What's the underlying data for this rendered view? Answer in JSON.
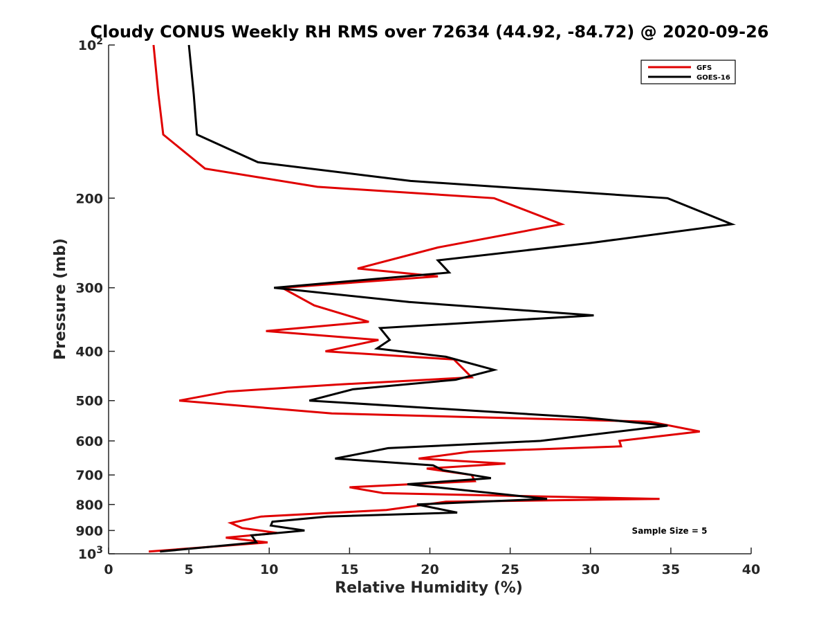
{
  "chart_data": {
    "type": "line",
    "title": "Cloudy CONUS Weekly RH RMS over 72634 (44.92, -84.72) @ 2020-09-26",
    "xlabel": "Relative Humidity (%)",
    "ylabel": "Pressure (mb)",
    "xlim": [
      0,
      40
    ],
    "ylim": [
      100,
      1000
    ],
    "y_scale": "log",
    "y_reversed": true,
    "grid": false,
    "legend_position": "top-right",
    "x_ticks": [
      "0",
      "5",
      "10",
      "15",
      "20",
      "25",
      "30",
      "35",
      "40"
    ],
    "x_tick_values": [
      0,
      5,
      10,
      15,
      20,
      25,
      30,
      35,
      40
    ],
    "y_ticks": [
      {
        "value": 100,
        "base": "10",
        "exp": "2"
      },
      {
        "value": 200,
        "label": "200"
      },
      {
        "value": 300,
        "label": "300"
      },
      {
        "value": 400,
        "label": "400"
      },
      {
        "value": 500,
        "label": "500"
      },
      {
        "value": 600,
        "label": "600"
      },
      {
        "value": 700,
        "label": "700"
      },
      {
        "value": 800,
        "label": "800"
      },
      {
        "value": 900,
        "label": "900"
      },
      {
        "value": 1000,
        "base": "10",
        "exp": "3"
      }
    ],
    "series": [
      {
        "name": "GFS",
        "color": "#e00000",
        "points": [
          [
            2.8,
            100
          ],
          [
            3.1,
            125
          ],
          [
            3.4,
            150
          ],
          [
            6.0,
            175
          ],
          [
            13.0,
            190
          ],
          [
            24.0,
            200
          ],
          [
            28.2,
            225
          ],
          [
            20.5,
            250
          ],
          [
            15.5,
            275
          ],
          [
            20.5,
            285
          ],
          [
            10.8,
            300
          ],
          [
            12.8,
            325
          ],
          [
            16.2,
            350
          ],
          [
            9.8,
            365
          ],
          [
            16.8,
            380
          ],
          [
            13.5,
            400
          ],
          [
            21.5,
            415
          ],
          [
            22.6,
            450
          ],
          [
            14.2,
            465
          ],
          [
            7.4,
            480
          ],
          [
            4.4,
            500
          ],
          [
            13.9,
            530
          ],
          [
            33.7,
            550
          ],
          [
            36.8,
            575
          ],
          [
            31.8,
            600
          ],
          [
            31.9,
            615
          ],
          [
            22.5,
            630
          ],
          [
            19.3,
            650
          ],
          [
            24.7,
            665
          ],
          [
            19.8,
            680
          ],
          [
            22.6,
            700
          ],
          [
            22.8,
            720
          ],
          [
            15.0,
            740
          ],
          [
            17.1,
            760
          ],
          [
            34.3,
            780
          ],
          [
            21.0,
            790
          ],
          [
            17.3,
            820
          ],
          [
            9.5,
            845
          ],
          [
            7.6,
            870
          ],
          [
            8.3,
            890
          ],
          [
            10.5,
            910
          ],
          [
            7.3,
            930
          ],
          [
            9.9,
            950
          ],
          [
            2.5,
            990
          ]
        ]
      },
      {
        "name": "GOES-16",
        "color": "#000000",
        "points": [
          [
            5.0,
            100
          ],
          [
            5.3,
            125
          ],
          [
            5.5,
            150
          ],
          [
            9.3,
            170
          ],
          [
            18.8,
            185
          ],
          [
            34.8,
            200
          ],
          [
            38.8,
            225
          ],
          [
            30.0,
            245
          ],
          [
            20.5,
            265
          ],
          [
            21.2,
            280
          ],
          [
            10.3,
            300
          ],
          [
            18.7,
            320
          ],
          [
            30.2,
            340
          ],
          [
            16.9,
            360
          ],
          [
            17.5,
            380
          ],
          [
            16.7,
            395
          ],
          [
            21.0,
            410
          ],
          [
            24.0,
            435
          ],
          [
            21.6,
            455
          ],
          [
            15.2,
            475
          ],
          [
            12.5,
            500
          ],
          [
            29.7,
            540
          ],
          [
            34.8,
            560
          ],
          [
            26.9,
            600
          ],
          [
            17.4,
            620
          ],
          [
            14.1,
            650
          ],
          [
            20.2,
            670
          ],
          [
            20.8,
            685
          ],
          [
            23.8,
            710
          ],
          [
            18.6,
            730
          ],
          [
            27.3,
            780
          ],
          [
            19.2,
            800
          ],
          [
            21.7,
            830
          ],
          [
            13.6,
            845
          ],
          [
            10.2,
            865
          ],
          [
            10.1,
            880
          ],
          [
            12.2,
            900
          ],
          [
            8.9,
            920
          ],
          [
            9.2,
            950
          ],
          [
            3.2,
            990
          ]
        ]
      }
    ],
    "annotation": "Sample Size = 5"
  }
}
